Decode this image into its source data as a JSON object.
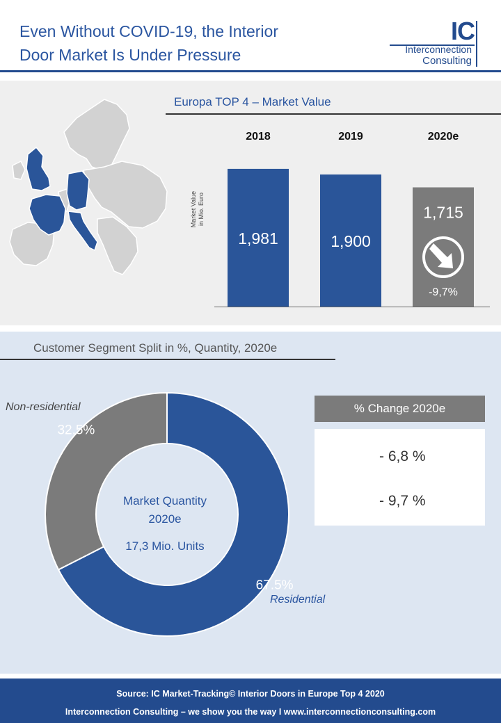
{
  "header": {
    "title_line1": "Even Without COVID-19, the Interior",
    "title_line2": "Door Market Is Under Pressure",
    "logo_mark": "IC",
    "logo_line1": "Interconnection",
    "logo_line2": "Consulting"
  },
  "colors": {
    "blue": "#2a5599",
    "gray": "#7b7b7b",
    "accent": "#234b8e"
  },
  "chart_data": [
    {
      "type": "bar",
      "title": "Europa TOP 4 – Market Value",
      "ylabel_line1": "Market Value",
      "ylabel_line2": "in Mio. Euro",
      "categories": [
        "2018",
        "2019",
        "2020e"
      ],
      "values": [
        1981,
        1900,
        1715
      ],
      "value_labels": [
        "1,981",
        "1,900",
        "1,715"
      ],
      "annotation": "-9,7%",
      "ylim": [
        0,
        2000
      ],
      "grid": false
    },
    {
      "type": "pie",
      "title": "Customer Segment Split in %, Quantity, 2020e",
      "slices": [
        {
          "name": "Residential",
          "value": 67.5,
          "label": "67.5%"
        },
        {
          "name": "Non-residential",
          "value": 32.5,
          "label": "32.5%"
        }
      ],
      "center_line1": "Market Quantity",
      "center_line2": "2020e",
      "center_line3": "17,3 Mio. Units"
    }
  ],
  "legend": {
    "title": "% Change 2020e",
    "items": [
      {
        "value": "- 6,8 %"
      },
      {
        "value": "- 9,7 %"
      }
    ]
  },
  "footer": {
    "line1": "Source: IC Market-Tracking© Interior Doors in Europe Top 4 2020",
    "line2": "Interconnection Consulting – we show you the way I  www.interconnectionconsulting.com"
  }
}
